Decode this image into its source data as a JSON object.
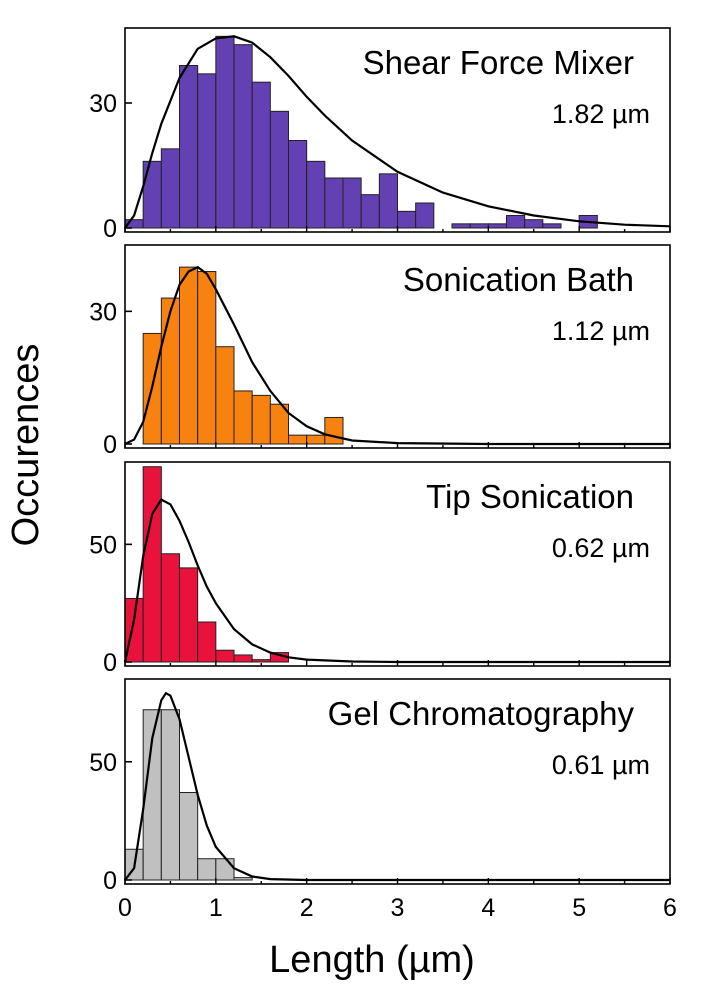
{
  "chart_data": {
    "type": "bar",
    "xlabel": "Length (µm)",
    "ylabel": "Occurences",
    "xlim": [
      0,
      6
    ],
    "xticks": [
      "0",
      "1",
      "2",
      "3",
      "4",
      "5",
      "6"
    ],
    "bin_width": 0.2,
    "panels": [
      {
        "title": "Shear Force Mixer",
        "mean_label": "1.82 µm",
        "color": "#6441b3",
        "ylim": [
          0,
          48
        ],
        "yticks": [
          0,
          30
        ],
        "ytick_labels": [
          "0",
          "30"
        ],
        "bins": [
          [
            0.0,
            2
          ],
          [
            0.2,
            16
          ],
          [
            0.4,
            19
          ],
          [
            0.6,
            39
          ],
          [
            0.8,
            37
          ],
          [
            1.0,
            46
          ],
          [
            1.2,
            44
          ],
          [
            1.4,
            35
          ],
          [
            1.6,
            28
          ],
          [
            1.8,
            21
          ],
          [
            2.0,
            16
          ],
          [
            2.2,
            12
          ],
          [
            2.4,
            12
          ],
          [
            2.6,
            8
          ],
          [
            2.8,
            13
          ],
          [
            3.0,
            4
          ],
          [
            3.2,
            6
          ],
          [
            3.6,
            1
          ],
          [
            3.8,
            1
          ],
          [
            4.0,
            1
          ],
          [
            4.2,
            3
          ],
          [
            4.4,
            2
          ],
          [
            4.6,
            1
          ],
          [
            5.0,
            3
          ]
        ],
        "fit_points": [
          [
            0.0,
            0
          ],
          [
            0.1,
            3
          ],
          [
            0.2,
            10
          ],
          [
            0.3,
            18
          ],
          [
            0.4,
            25
          ],
          [
            0.6,
            36
          ],
          [
            0.8,
            43
          ],
          [
            1.0,
            45.5
          ],
          [
            1.2,
            46
          ],
          [
            1.4,
            44.5
          ],
          [
            1.6,
            41
          ],
          [
            1.8,
            36.5
          ],
          [
            2.0,
            31.5
          ],
          [
            2.2,
            27
          ],
          [
            2.5,
            21
          ],
          [
            3.0,
            13.5
          ],
          [
            3.5,
            8.5
          ],
          [
            4.0,
            5.2
          ],
          [
            4.5,
            3
          ],
          [
            5.0,
            1.6
          ],
          [
            5.5,
            0.8
          ],
          [
            6.0,
            0.4
          ]
        ]
      },
      {
        "title": "Sonication Bath",
        "mean_label": "1.12 µm",
        "color": "#f7820f",
        "ylim": [
          0,
          45
        ],
        "yticks": [
          0,
          30
        ],
        "ytick_labels": [
          "0",
          "30"
        ],
        "bins": [
          [
            0.2,
            25
          ],
          [
            0.4,
            33
          ],
          [
            0.6,
            40
          ],
          [
            0.8,
            39
          ],
          [
            1.0,
            22
          ],
          [
            1.2,
            12
          ],
          [
            1.4,
            11
          ],
          [
            1.6,
            9
          ],
          [
            1.8,
            2
          ],
          [
            2.0,
            2
          ],
          [
            2.2,
            6
          ]
        ],
        "fit_points": [
          [
            0.0,
            0
          ],
          [
            0.1,
            1
          ],
          [
            0.2,
            5
          ],
          [
            0.3,
            13
          ],
          [
            0.4,
            22
          ],
          [
            0.5,
            30
          ],
          [
            0.6,
            36
          ],
          [
            0.7,
            39
          ],
          [
            0.8,
            40
          ],
          [
            0.9,
            38.5
          ],
          [
            1.0,
            35
          ],
          [
            1.2,
            27
          ],
          [
            1.4,
            18.5
          ],
          [
            1.6,
            12
          ],
          [
            1.8,
            7
          ],
          [
            2.0,
            4
          ],
          [
            2.2,
            2.2
          ],
          [
            2.5,
            0.8
          ],
          [
            3.0,
            0.2
          ],
          [
            4.0,
            0
          ],
          [
            6.0,
            0
          ]
        ]
      },
      {
        "title": "Tip Sonication",
        "mean_label": "0.62 µm",
        "color": "#e8123c",
        "ylim": [
          0,
          85
        ],
        "yticks": [
          0,
          50
        ],
        "ytick_labels": [
          "0",
          "50"
        ],
        "bins": [
          [
            0.0,
            27
          ],
          [
            0.2,
            83
          ],
          [
            0.4,
            46
          ],
          [
            0.6,
            40
          ],
          [
            0.8,
            17
          ],
          [
            1.0,
            5
          ],
          [
            1.2,
            3
          ],
          [
            1.4,
            1
          ],
          [
            1.6,
            4
          ]
        ],
        "fit_points": [
          [
            0.0,
            0
          ],
          [
            0.1,
            18
          ],
          [
            0.2,
            45
          ],
          [
            0.3,
            63
          ],
          [
            0.4,
            69
          ],
          [
            0.5,
            67
          ],
          [
            0.6,
            60
          ],
          [
            0.7,
            51
          ],
          [
            0.8,
            41
          ],
          [
            0.9,
            32
          ],
          [
            1.0,
            25
          ],
          [
            1.2,
            14
          ],
          [
            1.4,
            7.5
          ],
          [
            1.6,
            4
          ],
          [
            1.8,
            2
          ],
          [
            2.0,
            1
          ],
          [
            2.5,
            0.2
          ],
          [
            3.0,
            0
          ],
          [
            6.0,
            0
          ]
        ]
      },
      {
        "title": "Gel Chromatography",
        "mean_label": "0.61 µm",
        "color": "#c0c0c0",
        "ylim": [
          0,
          85
        ],
        "yticks": [
          0,
          50
        ],
        "ytick_labels": [
          "0",
          "50"
        ],
        "bins": [
          [
            0.0,
            13
          ],
          [
            0.2,
            72
          ],
          [
            0.4,
            72
          ],
          [
            0.6,
            37
          ],
          [
            0.8,
            9
          ],
          [
            1.0,
            9
          ],
          [
            1.2,
            1
          ]
        ],
        "fit_points": [
          [
            0.0,
            0
          ],
          [
            0.1,
            5
          ],
          [
            0.2,
            30
          ],
          [
            0.3,
            60
          ],
          [
            0.4,
            76
          ],
          [
            0.45,
            79
          ],
          [
            0.5,
            78
          ],
          [
            0.6,
            68
          ],
          [
            0.7,
            52
          ],
          [
            0.8,
            36
          ],
          [
            0.9,
            23
          ],
          [
            1.0,
            14
          ],
          [
            1.2,
            5
          ],
          [
            1.4,
            1.5
          ],
          [
            1.6,
            0.4
          ],
          [
            2.0,
            0
          ],
          [
            6.0,
            0
          ]
        ]
      }
    ]
  }
}
